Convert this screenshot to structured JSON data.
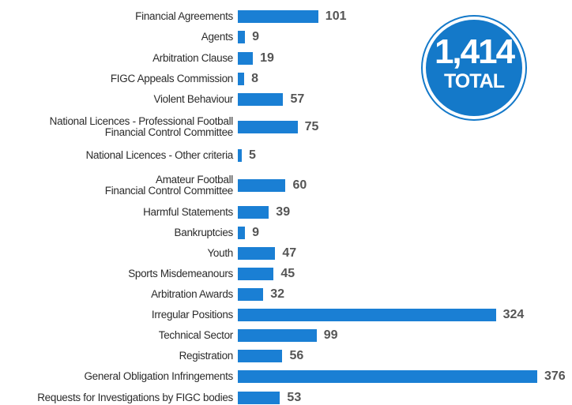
{
  "chart_data": {
    "type": "bar",
    "orientation": "horizontal",
    "color": "#1a7fd4",
    "categories": [
      "Financial Agreements",
      "Agents",
      "Arbitration Clause",
      "FIGC Appeals Commission",
      "Violent Behaviour",
      "National Licences - Professional Football\nFinancial Control Committee",
      "National Licences - Other criteria",
      "Amateur Football\nFinancial Control Committee",
      "Harmful Statements",
      "Bankruptcies",
      "Youth",
      "Sports Misdemeanours",
      "Arbitration Awards",
      "Irregular Positions",
      "Technical Sector",
      "Registration",
      "General Obligation Infringements",
      "Requests for Investigations by FIGC bodies"
    ],
    "values": [
      101,
      9,
      19,
      8,
      57,
      75,
      5,
      60,
      39,
      9,
      47,
      45,
      32,
      324,
      99,
      56,
      376,
      53
    ],
    "annotations": {
      "total": "1,414",
      "total_label": "TOTAL"
    }
  }
}
